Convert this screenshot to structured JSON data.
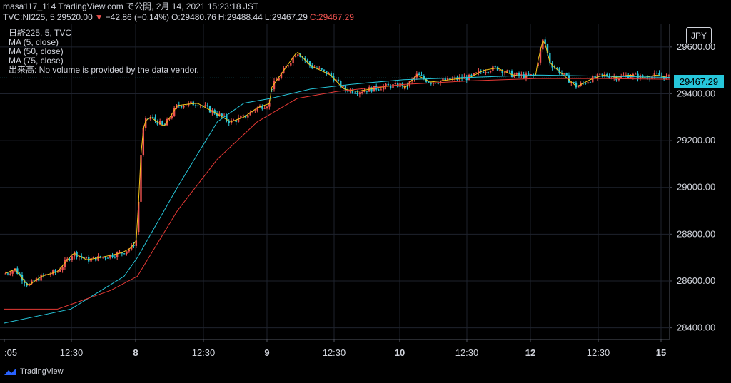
{
  "header": {
    "line1": "masa117_114 TradingView.com で公開, 2月 14, 2021 15:23:18 JST",
    "symbol": "TVC:NI225, 5",
    "last": "29520.00",
    "change": "−42.86 (−0.14%)",
    "open": "O:29480.76",
    "high": "H:29488.44",
    "low": "L:29467.29",
    "close": "C:29467.29"
  },
  "legend": {
    "title": "日経225, 5, TVC",
    "ma1": "MA (5, close)",
    "ma2": "MA (50, close)",
    "ma3": "MA (75, close)",
    "volume": "出来高: No volume is provided by the data vendor."
  },
  "currency": "JPY",
  "price_tag": "29467.29",
  "brand": "TradingView",
  "colors": {
    "up": "#ef5350",
    "down": "#26c6da",
    "ma5": "#f5c518",
    "ma50": "#26c6da",
    "ma75": "#e53935",
    "grid": "#1e222d"
  },
  "chart_data": {
    "type": "candlestick",
    "ylim": [
      28350,
      29700
    ],
    "yticks": [
      "29600.00",
      "29400.00",
      "29200.00",
      "29000.00",
      "28800.00",
      "28600.00",
      "28400.00"
    ],
    "xticks": [
      ":05",
      "12:30",
      "8",
      "12:30",
      "9",
      "12:30",
      "10",
      "12:30",
      "12",
      "12:30",
      "15"
    ],
    "bold_xticks": [
      2,
      4,
      6,
      8,
      10
    ],
    "sessions": [
      {
        "x0": 0.0,
        "x1": 1.0,
        "points": [
          [
            0,
            28630
          ],
          [
            0.08,
            28650
          ],
          [
            0.18,
            28580
          ],
          [
            0.28,
            28620
          ],
          [
            0.4,
            28640
          ],
          [
            0.52,
            28720
          ],
          [
            0.62,
            28690
          ],
          [
            0.72,
            28700
          ],
          [
            0.8,
            28710
          ],
          [
            0.88,
            28720
          ],
          [
            0.95,
            28740
          ],
          [
            1.0,
            28780
          ]
        ]
      },
      {
        "x0": 1.0,
        "x1": 2.0,
        "points": [
          [
            0,
            28810
          ],
          [
            0.02,
            29100
          ],
          [
            0.05,
            29280
          ],
          [
            0.1,
            29300
          ],
          [
            0.2,
            29260
          ],
          [
            0.3,
            29350
          ],
          [
            0.45,
            29360
          ],
          [
            0.58,
            29320
          ],
          [
            0.7,
            29280
          ],
          [
            0.8,
            29300
          ],
          [
            0.9,
            29340
          ],
          [
            1.0,
            29360
          ]
        ]
      },
      {
        "x0": 2.0,
        "x1": 3.0,
        "points": [
          [
            0,
            29420
          ],
          [
            0.1,
            29500
          ],
          [
            0.2,
            29580
          ],
          [
            0.3,
            29520
          ],
          [
            0.45,
            29480
          ],
          [
            0.55,
            29420
          ],
          [
            0.65,
            29410
          ],
          [
            0.75,
            29420
          ],
          [
            0.85,
            29430
          ],
          [
            1.0,
            29440
          ]
        ]
      },
      {
        "x0": 3.0,
        "x1": 4.0,
        "points": [
          [
            0,
            29420
          ],
          [
            0.1,
            29480
          ],
          [
            0.2,
            29450
          ],
          [
            0.35,
            29460
          ],
          [
            0.5,
            29470
          ],
          [
            0.6,
            29500
          ],
          [
            0.7,
            29510
          ],
          [
            0.82,
            29480
          ],
          [
            0.92,
            29475
          ],
          [
            1.0,
            29480
          ]
        ]
      },
      {
        "x0": 4.0,
        "x1": 5.0,
        "points": [
          [
            0,
            29520
          ],
          [
            0.05,
            29640
          ],
          [
            0.1,
            29530
          ],
          [
            0.2,
            29480
          ],
          [
            0.3,
            29430
          ],
          [
            0.4,
            29460
          ],
          [
            0.5,
            29480
          ],
          [
            0.6,
            29470
          ],
          [
            0.7,
            29480
          ],
          [
            0.8,
            29470
          ],
          [
            0.9,
            29480
          ],
          [
            1.0,
            29467
          ]
        ]
      }
    ],
    "ma50": [
      [
        0,
        28420
      ],
      [
        0.5,
        28480
      ],
      [
        0.9,
        28620
      ],
      [
        1.0,
        28700
      ],
      [
        1.3,
        29000
      ],
      [
        1.6,
        29280
      ],
      [
        1.8,
        29360
      ],
      [
        2.0,
        29380
      ],
      [
        2.3,
        29420
      ],
      [
        2.6,
        29440
      ],
      [
        3.0,
        29460
      ],
      [
        3.5,
        29470
      ],
      [
        4.0,
        29480
      ],
      [
        4.5,
        29475
      ],
      [
        5.0,
        29470
      ]
    ],
    "ma75": [
      [
        0,
        28480
      ],
      [
        0.4,
        28480
      ],
      [
        0.8,
        28560
      ],
      [
        1.0,
        28620
      ],
      [
        1.3,
        28900
      ],
      [
        1.6,
        29120
      ],
      [
        1.9,
        29280
      ],
      [
        2.2,
        29380
      ],
      [
        2.5,
        29410
      ],
      [
        3.0,
        29440
      ],
      [
        3.5,
        29455
      ],
      [
        4.0,
        29465
      ],
      [
        4.5,
        29465
      ],
      [
        5.0,
        29462
      ]
    ]
  }
}
